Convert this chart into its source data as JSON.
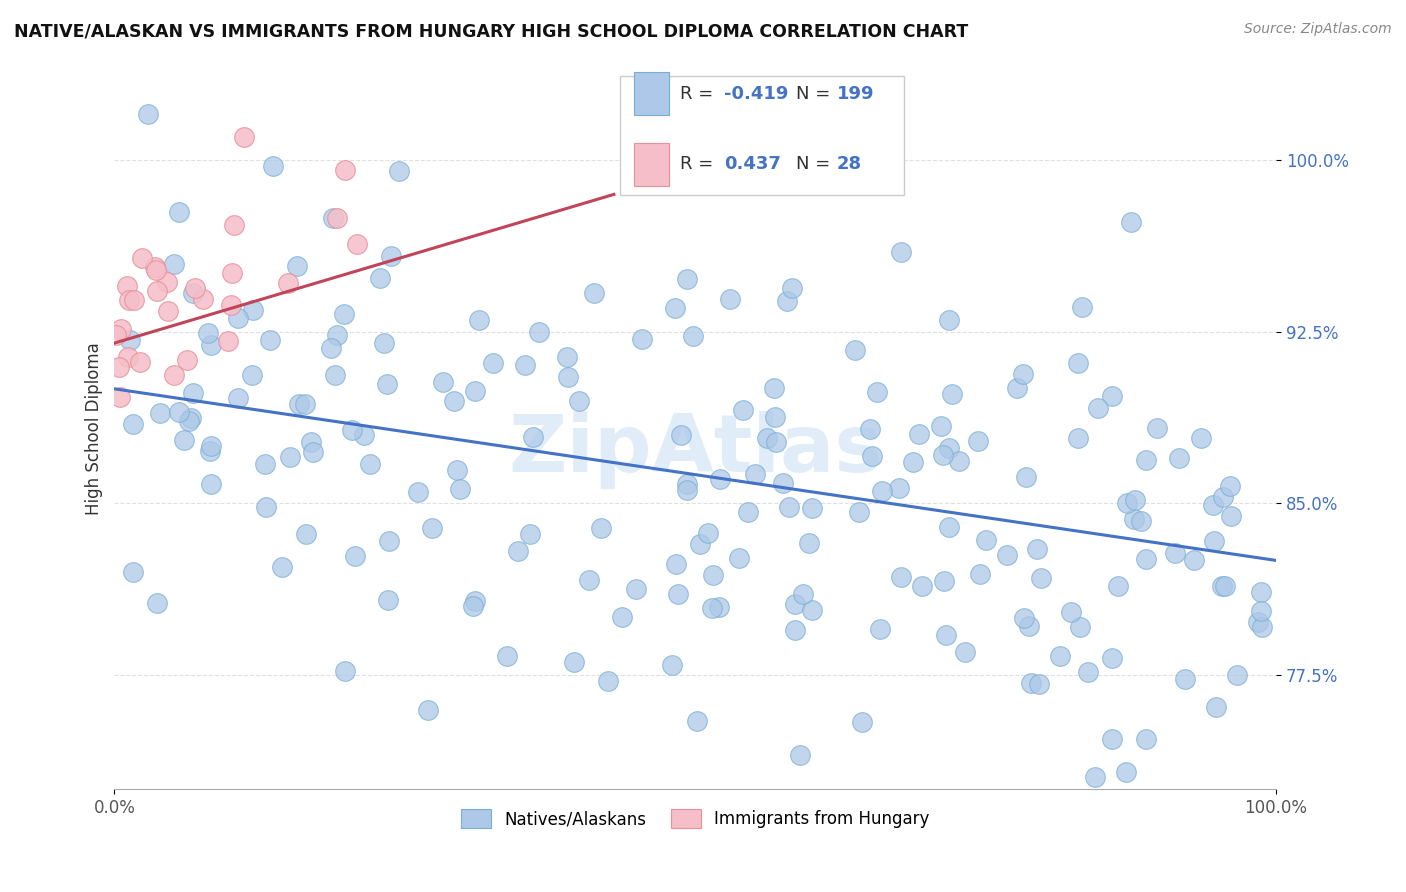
{
  "title": "NATIVE/ALASKAN VS IMMIGRANTS FROM HUNGARY HIGH SCHOOL DIPLOMA CORRELATION CHART",
  "source": "Source: ZipAtlas.com",
  "ylabel": "High School Diploma",
  "y_ticks": [
    0.775,
    0.85,
    0.925,
    1.0
  ],
  "y_tick_labels": [
    "77.5%",
    "85.0%",
    "92.5%",
    "100.0%"
  ],
  "xlim": [
    0.0,
    1.0
  ],
  "ylim": [
    0.725,
    1.04
  ],
  "blue_R": "-0.419",
  "blue_N": "199",
  "pink_R": "0.437",
  "pink_N": "28",
  "blue_color": "#adc8e8",
  "blue_edge": "#7aafd4",
  "pink_color": "#f5bec8",
  "pink_edge": "#e8909a",
  "blue_line_color": "#4472c4",
  "pink_line_color": "#c0445a",
  "watermark": "ZipAtlas",
  "background_color": "#ffffff",
  "grid_color": "#dddddd",
  "legend_R_color": "#4472c4",
  "legend_N_color": "#4472c4"
}
